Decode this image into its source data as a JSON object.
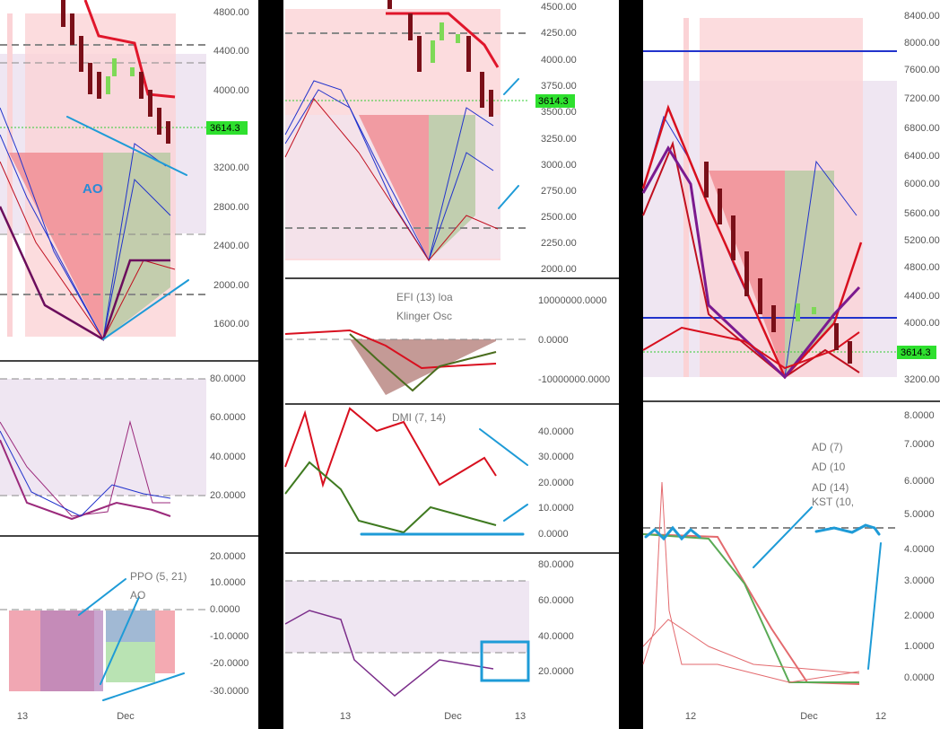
{
  "panels": {
    "left": {
      "price_axis": [
        "4800.00",
        "4400.00",
        "4000.00",
        "3200.00",
        "2800.00",
        "2400.00",
        "2000.00",
        "1600.00"
      ],
      "price_marker": "3614.3",
      "osc1_axis": [
        "80.0000",
        "60.0000",
        "40.0000",
        "20.0000"
      ],
      "osc2_axis": [
        "20.0000",
        "10.0000",
        "0.0000",
        "-10.0000",
        "-20.0000",
        "-30.0000"
      ],
      "annotation": "AO",
      "legend": [
        "PPO (5, 21)",
        "AO"
      ],
      "time_axis": [
        "13",
        "Dec"
      ]
    },
    "middle": {
      "price_axis": [
        "4500.00",
        "4250.00",
        "4000.00",
        "3750.00",
        "3500.00",
        "3250.00",
        "3000.00",
        "2750.00",
        "2500.00",
        "2250.00",
        "2000.00"
      ],
      "price_marker": "3614.3",
      "osc1_axis": [
        "10000000.0000",
        "0.0000",
        "-10000000.0000"
      ],
      "osc1_legend": [
        "EFI (13) loa",
        "Klinger Osc"
      ],
      "osc2_axis": [
        "40.0000",
        "30.0000",
        "20.0000",
        "10.0000",
        "0.0000"
      ],
      "osc2_legend": [
        "DMI (7, 14)"
      ],
      "osc3_axis": [
        "80.0000",
        "60.0000",
        "40.0000",
        "20.0000"
      ],
      "time_axis": [
        "13",
        "Dec",
        "13"
      ]
    },
    "right": {
      "price_axis": [
        "8400.00",
        "8000.00",
        "7600.00",
        "7200.00",
        "6800.00",
        "6400.00",
        "6000.00",
        "5600.00",
        "5200.00",
        "4800.00",
        "4400.00",
        "4000.00",
        "3200.00"
      ],
      "price_marker": "3614.3",
      "osc1_axis": [
        "8.0000",
        "7.0000",
        "6.0000",
        "5.0000",
        "4.0000",
        "3.0000",
        "2.0000",
        "1.0000",
        "0.0000"
      ],
      "osc1_legend": [
        "AD (7)",
        "AD (10",
        "AD (14)",
        "KST (10,"
      ],
      "time_axis": [
        "12",
        "Dec",
        "12"
      ]
    }
  }
}
